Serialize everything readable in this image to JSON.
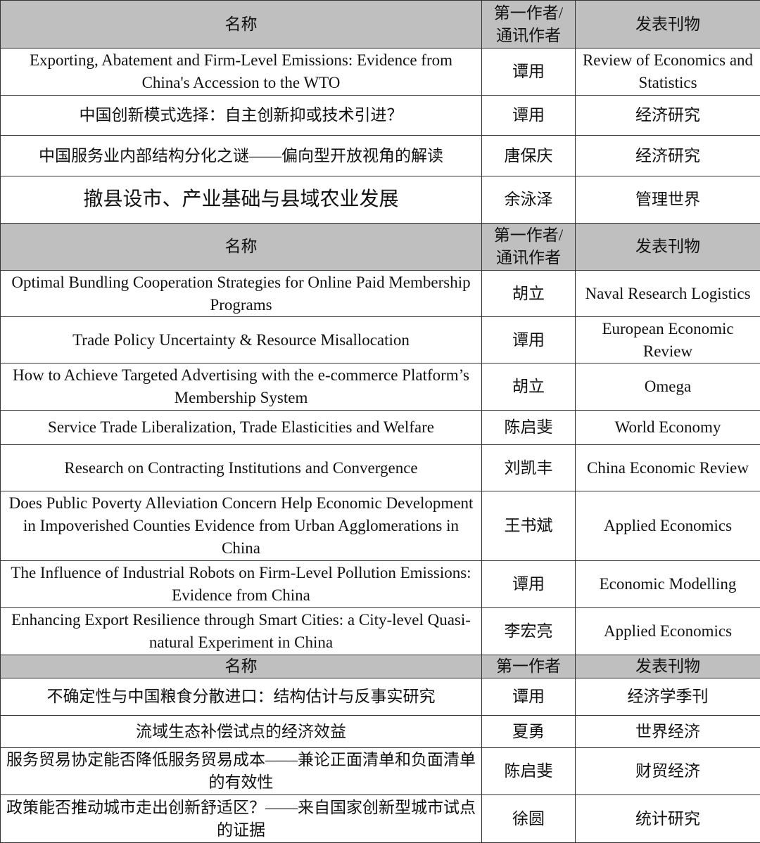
{
  "sections": [
    {
      "header": {
        "name": "名称",
        "author": "第一作者/通讯作者",
        "journal": "发表刊物"
      },
      "rows": [
        {
          "name": "Exporting, Abatement and Firm-Level Emissions: Evidence from China's Accession to the WTO",
          "author": "谭用",
          "journal": "Review of Economics and Statistics"
        },
        {
          "name": "中国创新模式选择：自主创新抑或技术引进？",
          "author": "谭用",
          "journal": "经济研究"
        },
        {
          "name": "中国服务业内部结构分化之谜——偏向型开放视角的解读",
          "author": "唐保庆",
          "journal": "经济研究"
        },
        {
          "name": "撤县设市、产业基础与县域农业发展",
          "author": "余泳泽",
          "journal": "管理世界"
        }
      ]
    },
    {
      "header": {
        "name": "名称",
        "author": "第一作者/通讯作者",
        "journal": "发表刊物"
      },
      "rows": [
        {
          "name": "Optimal Bundling Cooperation Strategies for Online Paid Membership Programs",
          "author": "胡立",
          "journal": "Naval Research Logistics"
        },
        {
          "name": "Trade Policy Uncertainty & Resource Misallocation",
          "author": "谭用",
          "journal": "European Economic Review"
        },
        {
          "name": "How to Achieve Targeted Advertising with the e-commerce Platform’s Membership System",
          "author": "胡立",
          "journal": "Omega"
        },
        {
          "name": "Service Trade Liberalization, Trade Elasticities and Welfare",
          "author": "陈启斐",
          "journal": "World Economy"
        },
        {
          "name": "Research on Contracting Institutions and Convergence",
          "author": "刘凯丰",
          "journal": "China Economic Review"
        },
        {
          "name": "Does Public Poverty Alleviation Concern Help Economic Development in Impoverished Counties Evidence from Urban Agglomerations in China",
          "author": "王书斌",
          "journal": "Applied Economics"
        },
        {
          "name": "The Influence of Industrial Robots on Firm-Level Pollution Emissions: Evidence from China",
          "author": "谭用",
          "journal": "Economic Modelling"
        },
        {
          "name": "Enhancing Export Resilience through Smart Cities: a City-level Quasi-natural Experiment in China",
          "author": "李宏亮",
          "journal": "Applied Economics"
        }
      ]
    },
    {
      "header": {
        "name": "名称",
        "author": "第一作者",
        "journal": "发表刊物"
      },
      "rows": [
        {
          "name": "不确定性与中国粮食分散进口：结构估计与反事实研究",
          "author": "谭用",
          "journal": "经济学季刊"
        },
        {
          "name": "流域生态补偿试点的经济效益",
          "author": "夏勇",
          "journal": "世界经济"
        },
        {
          "name": "服务贸易协定能否降低服务贸易成本——兼论正面清单和负面清单的有效性",
          "author": "陈启斐",
          "journal": "财贸经济"
        },
        {
          "name": "政策能否推动城市走出创新舒适区？——来自国家创新型城市试点的证据",
          "author": "徐圆",
          "journal": "统计研究"
        }
      ]
    }
  ],
  "colors": {
    "header_bg": "#bfbfbf",
    "border": "#333333"
  }
}
